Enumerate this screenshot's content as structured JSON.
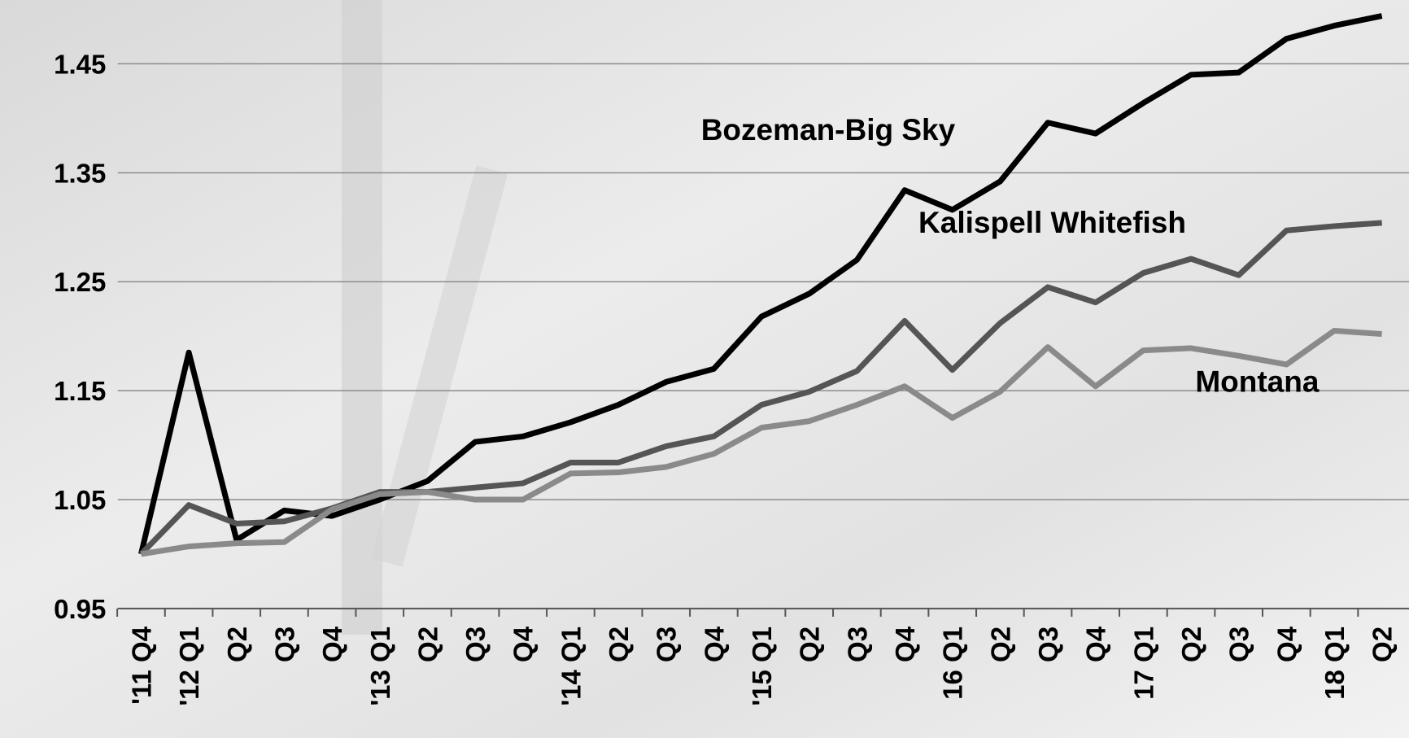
{
  "chart_data": {
    "type": "line",
    "categories": [
      "'11 Q4",
      "'12 Q1",
      "Q2",
      "Q3",
      "Q4",
      "'13 Q1",
      "Q2",
      "Q3",
      "Q4",
      "'14 Q1",
      "Q2",
      "Q3",
      "Q4",
      "'15 Q1",
      "Q2",
      "Q3",
      "Q4",
      "16 Q1",
      "Q2",
      "Q3",
      "Q4",
      "17 Q1",
      "Q2",
      "Q3",
      "Q4",
      "18 Q1",
      "Q2"
    ],
    "series": [
      {
        "name": "Bozeman-Big Sky",
        "color": "#000000",
        "values": [
          1.0,
          1.185,
          1.013,
          1.04,
          1.035,
          1.05,
          1.067,
          1.103,
          1.108,
          1.121,
          1.137,
          1.158,
          1.17,
          1.218,
          1.239,
          1.27,
          1.334,
          1.316,
          1.342,
          1.396,
          1.386,
          1.414,
          1.44,
          1.442,
          1.473,
          1.485,
          1.494
        ]
      },
      {
        "name": "Kalispell Whitefish",
        "color": "#555555",
        "values": [
          1.0,
          1.045,
          1.028,
          1.03,
          1.042,
          1.057,
          1.057,
          1.061,
          1.065,
          1.084,
          1.084,
          1.099,
          1.108,
          1.137,
          1.149,
          1.168,
          1.214,
          1.169,
          1.212,
          1.245,
          1.231,
          1.258,
          1.271,
          1.256,
          1.297,
          1.301,
          1.304
        ]
      },
      {
        "name": "Montana",
        "color": "#8a8a8a",
        "values": [
          1.0,
          1.007,
          1.01,
          1.011,
          1.041,
          1.055,
          1.057,
          1.05,
          1.05,
          1.074,
          1.075,
          1.08,
          1.092,
          1.116,
          1.122,
          1.137,
          1.154,
          1.125,
          1.149,
          1.19,
          1.154,
          1.187,
          1.189,
          1.182,
          1.174,
          1.205,
          1.202
        ]
      }
    ],
    "ylim": [
      0.95,
      1.5
    ],
    "yticks": [
      0.95,
      1.05,
      1.15,
      1.25,
      1.35,
      1.45
    ],
    "grid": true
  }
}
